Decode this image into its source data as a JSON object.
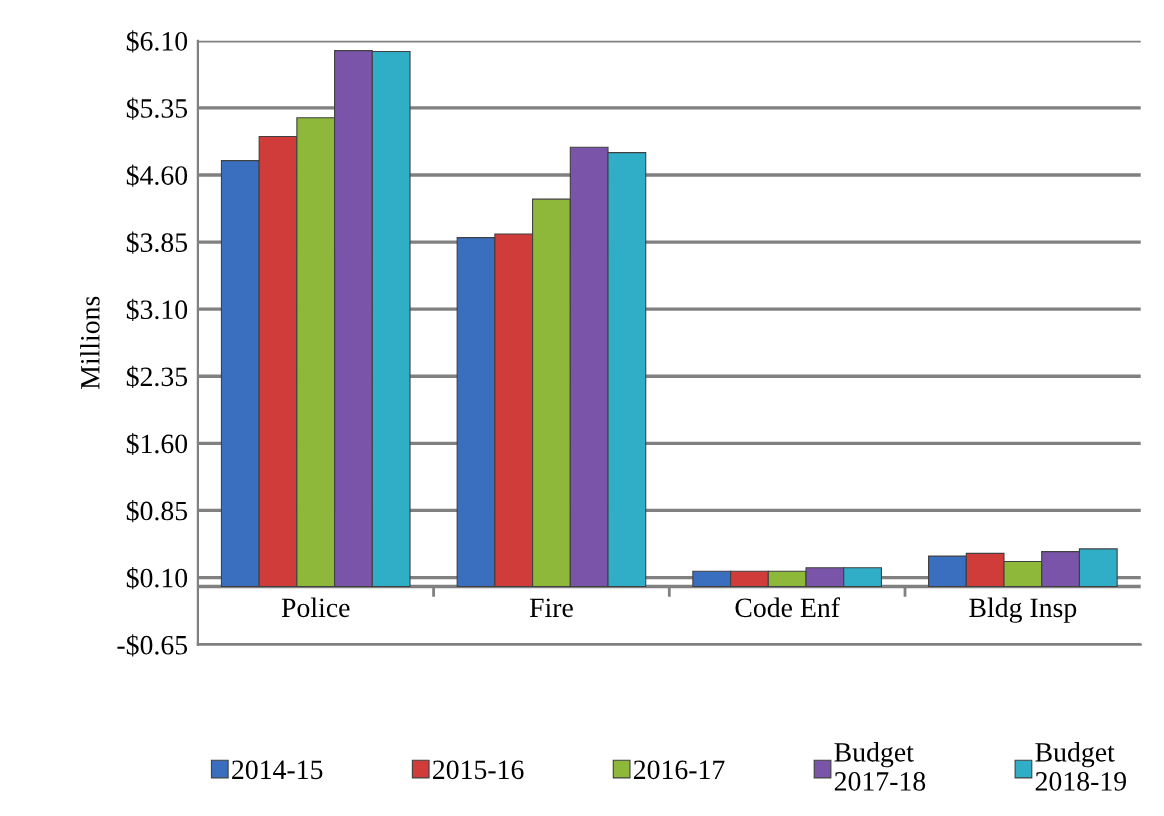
{
  "chart_data": {
    "type": "bar",
    "ylabel": "Millions",
    "categories": [
      "Police",
      "Fire",
      "Code Enf",
      "Bldg Insp"
    ],
    "series": [
      {
        "name": "2014-15",
        "color": "#3a6fc0",
        "values": [
          4.76,
          3.9,
          0.17,
          0.34
        ]
      },
      {
        "name": "2015-16",
        "color": "#d03c3a",
        "values": [
          5.03,
          3.94,
          0.17,
          0.37
        ]
      },
      {
        "name": "2016-17",
        "color": "#8db83a",
        "values": [
          5.24,
          4.33,
          0.17,
          0.28
        ]
      },
      {
        "name": "Budget 2017-18",
        "color": "#7a54a8",
        "values": [
          5.99,
          4.91,
          0.21,
          0.39
        ]
      },
      {
        "name": "Budget 2018-19",
        "color": "#30aec8",
        "values": [
          5.98,
          4.85,
          0.21,
          0.42
        ]
      }
    ],
    "ylim": [
      -0.65,
      6.1
    ],
    "yticks": [
      {
        "value": -0.65,
        "label": "-$0.65"
      },
      {
        "value": 0.1,
        "label": "$0.10"
      },
      {
        "value": 0.85,
        "label": "$0.85"
      },
      {
        "value": 1.6,
        "label": "$1.60"
      },
      {
        "value": 2.35,
        "label": "$2.35"
      },
      {
        "value": 3.1,
        "label": "$3.10"
      },
      {
        "value": 3.85,
        "label": "$3.85"
      },
      {
        "value": 4.6,
        "label": "$4.60"
      },
      {
        "value": 5.35,
        "label": "$5.35"
      },
      {
        "value": 6.1,
        "label": "$6.10"
      }
    ],
    "grid": "y",
    "legend": "bottom"
  }
}
